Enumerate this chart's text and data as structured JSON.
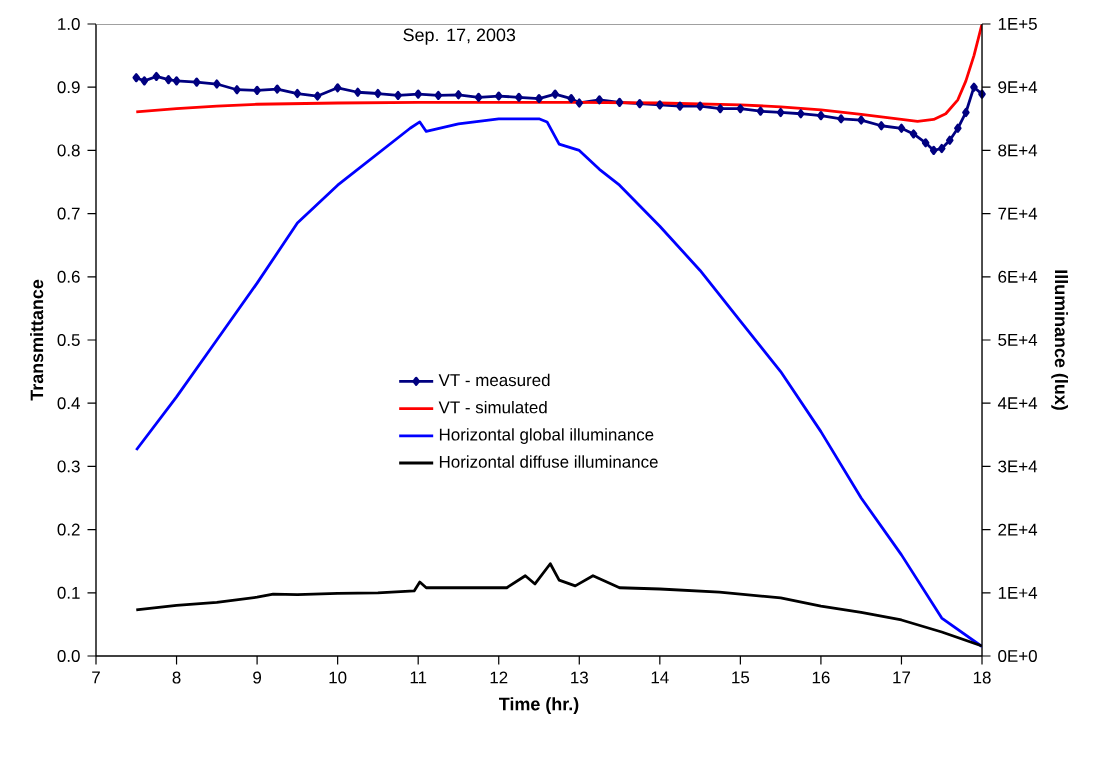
{
  "chart_data": {
    "type": "line",
    "title": "Sep. 17,  2003",
    "xlabel": "Time (hr.)",
    "ylabel": "Transmittance",
    "y2label": "Illuminance (lux)",
    "xlim": [
      7,
      18
    ],
    "xticks": [
      7,
      8,
      9,
      10,
      11,
      12,
      13,
      14,
      15,
      16,
      17,
      18
    ],
    "ylim": [
      0,
      1
    ],
    "yticks": [
      {
        "value": 0,
        "label": "0.0"
      },
      0.1,
      0.2,
      0.3,
      0.4,
      0.5,
      0.6,
      0.7,
      0.8,
      0.9,
      {
        "value": 1,
        "label": "1.0"
      }
    ],
    "y2lim": [
      0,
      100000
    ],
    "y2ticks": [
      {
        "value": 0,
        "label": "0E+0"
      },
      {
        "value": 10000,
        "label": "1E+4"
      },
      {
        "value": 20000,
        "label": "2E+4"
      },
      {
        "value": 30000,
        "label": "3E+4"
      },
      {
        "value": 40000,
        "label": "4E+4"
      },
      {
        "value": 50000,
        "label": "5E+4"
      },
      {
        "value": 60000,
        "label": "6E+4"
      },
      {
        "value": 70000,
        "label": "7E+4"
      },
      {
        "value": 80000,
        "label": "8E+4"
      },
      {
        "value": 90000,
        "label": "9E+4"
      },
      {
        "value": 100000,
        "label": "1E+5"
      }
    ],
    "legend": "center",
    "grid": false,
    "series": [
      {
        "name": "VT - measured",
        "color": "#000080",
        "marker": "diamond",
        "x": [
          7.5,
          7.6,
          7.75,
          7.9,
          8.0,
          8.25,
          8.5,
          8.75,
          9.0,
          9.25,
          9.5,
          9.75,
          10.0,
          10.25,
          10.5,
          10.75,
          11.0,
          11.25,
          11.5,
          11.75,
          12.0,
          12.25,
          12.5,
          12.7,
          12.9,
          13.0,
          13.25,
          13.5,
          13.75,
          14.0,
          14.25,
          14.5,
          14.75,
          15.0,
          15.25,
          15.5,
          15.75,
          16.0,
          16.25,
          16.5,
          16.75,
          17.0,
          17.15,
          17.3,
          17.4,
          17.5,
          17.6,
          17.7,
          17.8,
          17.9,
          18.0
        ],
        "values": [
          0.915,
          0.91,
          0.917,
          0.912,
          0.91,
          0.908,
          0.905,
          0.896,
          0.895,
          0.897,
          0.89,
          0.886,
          0.899,
          0.892,
          0.89,
          0.887,
          0.889,
          0.887,
          0.888,
          0.884,
          0.886,
          0.884,
          0.882,
          0.889,
          0.882,
          0.875,
          0.88,
          0.876,
          0.874,
          0.872,
          0.87,
          0.87,
          0.866,
          0.866,
          0.862,
          0.86,
          0.858,
          0.855,
          0.85,
          0.848,
          0.839,
          0.835,
          0.826,
          0.812,
          0.8,
          0.803,
          0.816,
          0.835,
          0.86,
          0.9,
          0.889
        ]
      },
      {
        "name": "VT - simulated",
        "color": "#ff0000",
        "x": [
          7.5,
          8.0,
          8.5,
          9.0,
          10.0,
          11.0,
          12.0,
          13.0,
          14.0,
          15.0,
          15.5,
          16.0,
          16.5,
          17.0,
          17.2,
          17.4,
          17.55,
          17.7,
          17.8,
          17.9,
          17.95,
          18.0
        ],
        "values": [
          0.861,
          0.866,
          0.87,
          0.873,
          0.875,
          0.876,
          0.876,
          0.876,
          0.875,
          0.872,
          0.869,
          0.864,
          0.857,
          0.849,
          0.846,
          0.849,
          0.858,
          0.88,
          0.91,
          0.95,
          0.975,
          1.0
        ]
      },
      {
        "name": "Horizontal global illuminance",
        "color": "#0000ff",
        "axis": "y2",
        "x": [
          7.5,
          8.0,
          8.5,
          9.0,
          9.5,
          10.0,
          10.5,
          10.9,
          11.02,
          11.1,
          11.5,
          12.0,
          12.5,
          12.6,
          12.75,
          13.0,
          13.25,
          13.5,
          14.0,
          14.5,
          15.0,
          15.5,
          16.0,
          16.5,
          17.0,
          17.5,
          18.0
        ],
        "values": [
          32600,
          41000,
          50000,
          59000,
          68500,
          74500,
          79500,
          83500,
          84500,
          83000,
          84200,
          85000,
          85000,
          84500,
          81000,
          80000,
          77000,
          74500,
          68000,
          61000,
          53000,
          45000,
          35500,
          25000,
          16000,
          6000,
          1500
        ]
      },
      {
        "name": "Horizontal diffuse illuminance",
        "color": "#000000",
        "axis": "y2",
        "x": [
          7.5,
          8.0,
          8.5,
          9.0,
          9.2,
          9.5,
          10.0,
          10.5,
          10.95,
          11.02,
          11.1,
          11.5,
          12.1,
          12.33,
          12.45,
          12.64,
          12.75,
          12.95,
          13.17,
          13.5,
          14.0,
          14.74,
          15.5,
          16.0,
          16.5,
          17.0,
          17.5,
          18.0
        ],
        "values": [
          7300,
          8000,
          8500,
          9300,
          9800,
          9700,
          9900,
          10000,
          10300,
          11700,
          10800,
          10800,
          10800,
          12700,
          11400,
          14600,
          12000,
          11100,
          12700,
          10800,
          10600,
          10100,
          9200,
          7900,
          6900,
          5700,
          3800,
          1600
        ]
      }
    ]
  }
}
